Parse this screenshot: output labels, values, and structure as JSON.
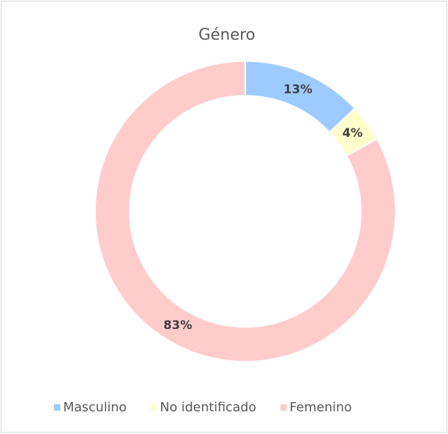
{
  "chart_data": {
    "type": "donut",
    "title": "Género",
    "categories": [
      "Masculino",
      "No identificado",
      "Femenino"
    ],
    "values": [
      13,
      4,
      83
    ],
    "value_labels": [
      "13%",
      "4%",
      "83%"
    ],
    "colors": [
      "#9dcbff",
      "#ffffcc",
      "#ffcccc"
    ],
    "legend": "bottom"
  }
}
